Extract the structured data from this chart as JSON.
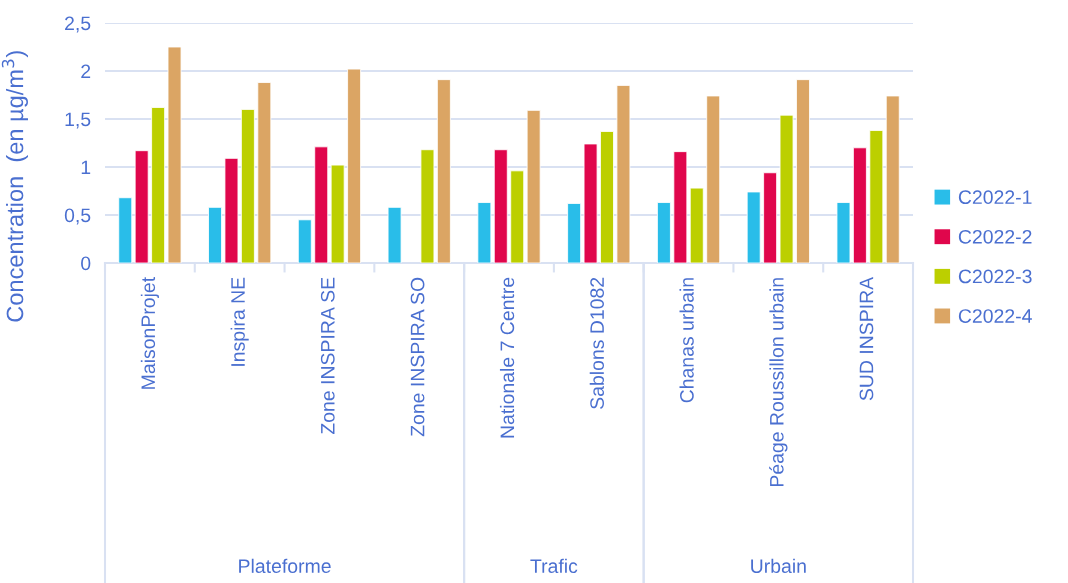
{
  "chart_data": {
    "type": "bar",
    "ylabel": "Concentration  (en µg/m$^{3}$)",
    "categories": [
      "MaisonProjet",
      "Inspira NE",
      "Zone INSPIRA SE",
      "Zone INSPIRA SO",
      "Nationale 7 Centre",
      "Sablons D1082",
      "Chanas urbain",
      "Péage Roussillon urbain",
      "SUD INSPIRA"
    ],
    "series": [
      {
        "name": "C2022-1",
        "color": "#29bde9",
        "values": [
          0.68,
          0.58,
          0.45,
          0.58,
          0.63,
          0.62,
          0.63,
          0.74,
          0.63
        ]
      },
      {
        "name": "C2022-2",
        "color": "#e0064c",
        "values": [
          1.17,
          1.09,
          1.21,
          null,
          1.18,
          1.24,
          1.16,
          0.94,
          1.2
        ]
      },
      {
        "name": "C2022-3",
        "color": "#bccf00",
        "values": [
          1.62,
          1.6,
          1.02,
          1.18,
          0.96,
          1.37,
          0.78,
          1.54,
          1.38
        ]
      },
      {
        "name": "C2022-4",
        "color": "#dba564",
        "values": [
          2.25,
          1.88,
          2.02,
          1.91,
          1.59,
          1.85,
          1.74,
          1.91,
          1.74
        ]
      }
    ],
    "annotations": [
      "Plateforme",
      "Trafic",
      "Urbain"
    ],
    "ylim": [
      0,
      2.5
    ],
    "yticks": [
      0,
      {
        "value": 0.5,
        "label": "0,5"
      },
      1,
      {
        "value": 1.5,
        "label": "1,5"
      },
      2,
      {
        "value": 2.5,
        "label": "2,5"
      }
    ],
    "grid": "y",
    "legend": "right"
  }
}
